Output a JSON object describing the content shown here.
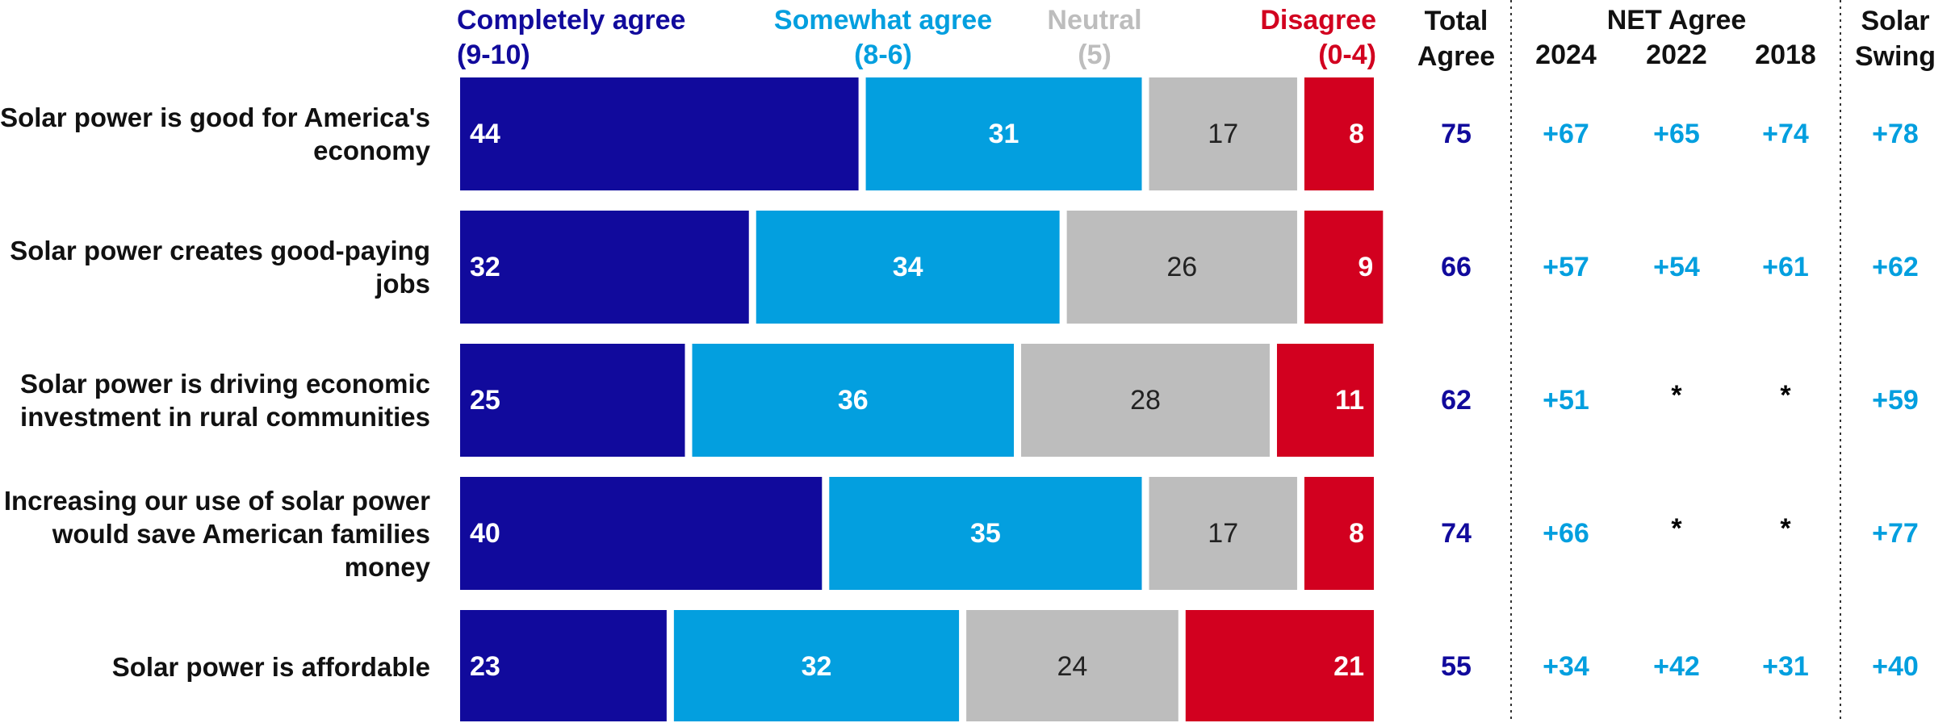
{
  "chart_data": {
    "type": "stacked-bar",
    "categories": [
      "Solar power is good for America's economy",
      "Solar power creates good-paying jobs",
      "Solar power is driving economic investment in rural communities",
      "Increasing our use of solar power would save American families money",
      "Solar power is affordable"
    ],
    "series": [
      {
        "name": "Completely agree",
        "scale": "(9-10)",
        "color": "#110a9c",
        "label_color": "#ffffff",
        "values": [
          44,
          32,
          25,
          40,
          23
        ]
      },
      {
        "name": "Somewhat agree",
        "scale": "(8-6)",
        "color": "#039fdf",
        "label_color": "#ffffff",
        "values": [
          31,
          34,
          36,
          35,
          32
        ]
      },
      {
        "name": "Neutral",
        "scale": "(5)",
        "color": "#bdbdbd",
        "label_color": "#222222",
        "values": [
          17,
          26,
          28,
          17,
          24
        ]
      },
      {
        "name": "Disagree",
        "scale": "(0-4)",
        "color": "#d2001f",
        "label_color": "#ffffff",
        "values": [
          8,
          9,
          11,
          8,
          21
        ]
      }
    ],
    "xlim": [
      0,
      100
    ]
  },
  "table": {
    "total": {
      "header": "Total Agree",
      "color": "#110a9c",
      "values": [
        75,
        66,
        62,
        74,
        55
      ]
    },
    "net_agree": {
      "header": "NET Agree",
      "color": "#039fdf",
      "na_color": "#000000",
      "columns": [
        {
          "header": "2024",
          "values": [
            "+67",
            "+57",
            "+51",
            "+66",
            "+34"
          ]
        },
        {
          "header": "2022",
          "values": [
            "+65",
            "+54",
            "*",
            "*",
            "+42"
          ]
        },
        {
          "header": "2018",
          "values": [
            "+74",
            "+61",
            "*",
            "*",
            "+31"
          ]
        }
      ]
    },
    "swing": {
      "header": "Solar Swing",
      "color": "#039fdf",
      "values": [
        "+78",
        "+62",
        "+59",
        "+77",
        "+40"
      ]
    }
  }
}
